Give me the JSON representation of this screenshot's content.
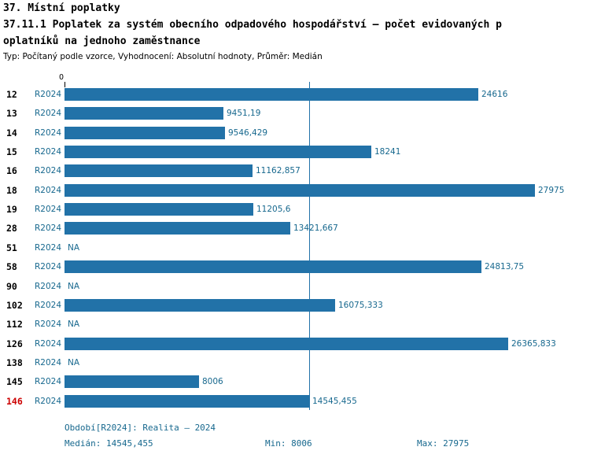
{
  "title": {
    "line1": "37. Místní poplatky",
    "line2": "37.11.1 Poplatek za systém obecního odpadového hospodářství – počet evidovaných p",
    "line3": "oplatníků na jednoho zaměstnance",
    "subtitle": "Typ: Počítaný podle vzorce, Vyhodnocení: Absolutní hodnoty, Průměr: Medián"
  },
  "chart_data": {
    "type": "bar",
    "orientation": "horizontal",
    "x_axis_zero_label": "0",
    "period_label": "R2024",
    "xlim": [
      0,
      27975
    ],
    "xmax": 27975,
    "median": 14545.455,
    "categories": [
      "12",
      "13",
      "14",
      "15",
      "16",
      "18",
      "19",
      "28",
      "51",
      "58",
      "90",
      "102",
      "112",
      "126",
      "138",
      "145",
      "146"
    ],
    "rows": [
      {
        "id": "12",
        "value": 24616,
        "label": "24616",
        "highlight": false
      },
      {
        "id": "13",
        "value": 9451.19,
        "label": "9451,19",
        "highlight": false
      },
      {
        "id": "14",
        "value": 9546.429,
        "label": "9546,429",
        "highlight": false
      },
      {
        "id": "15",
        "value": 18241,
        "label": "18241",
        "highlight": false
      },
      {
        "id": "16",
        "value": 11162.857,
        "label": "11162,857",
        "highlight": false
      },
      {
        "id": "18",
        "value": 27975,
        "label": "27975",
        "highlight": false
      },
      {
        "id": "19",
        "value": 11205.6,
        "label": "11205,6",
        "highlight": false
      },
      {
        "id": "28",
        "value": 13421.667,
        "label": "13421,667",
        "highlight": false
      },
      {
        "id": "51",
        "value": null,
        "label": "NA",
        "highlight": false
      },
      {
        "id": "58",
        "value": 24813.75,
        "label": "24813,75",
        "highlight": false
      },
      {
        "id": "90",
        "value": null,
        "label": "NA",
        "highlight": false
      },
      {
        "id": "102",
        "value": 16075.333,
        "label": "16075,333",
        "highlight": false
      },
      {
        "id": "112",
        "value": null,
        "label": "NA",
        "highlight": false
      },
      {
        "id": "126",
        "value": 26365.833,
        "label": "26365,833",
        "highlight": false
      },
      {
        "id": "138",
        "value": null,
        "label": "NA",
        "highlight": false
      },
      {
        "id": "145",
        "value": 8006,
        "label": "8006",
        "highlight": false
      },
      {
        "id": "146",
        "value": 14545.455,
        "label": "14545,455",
        "highlight": true
      }
    ]
  },
  "footer": {
    "period": "Období[R2024]: Realita – 2024",
    "median_label": "Medián: 14545,455",
    "min_label": "Min: 8006",
    "max_label": "Max: 27975"
  },
  "colors": {
    "bar": "#2272a8",
    "accent_text": "#17688e",
    "highlight_row": "#cc0000"
  }
}
